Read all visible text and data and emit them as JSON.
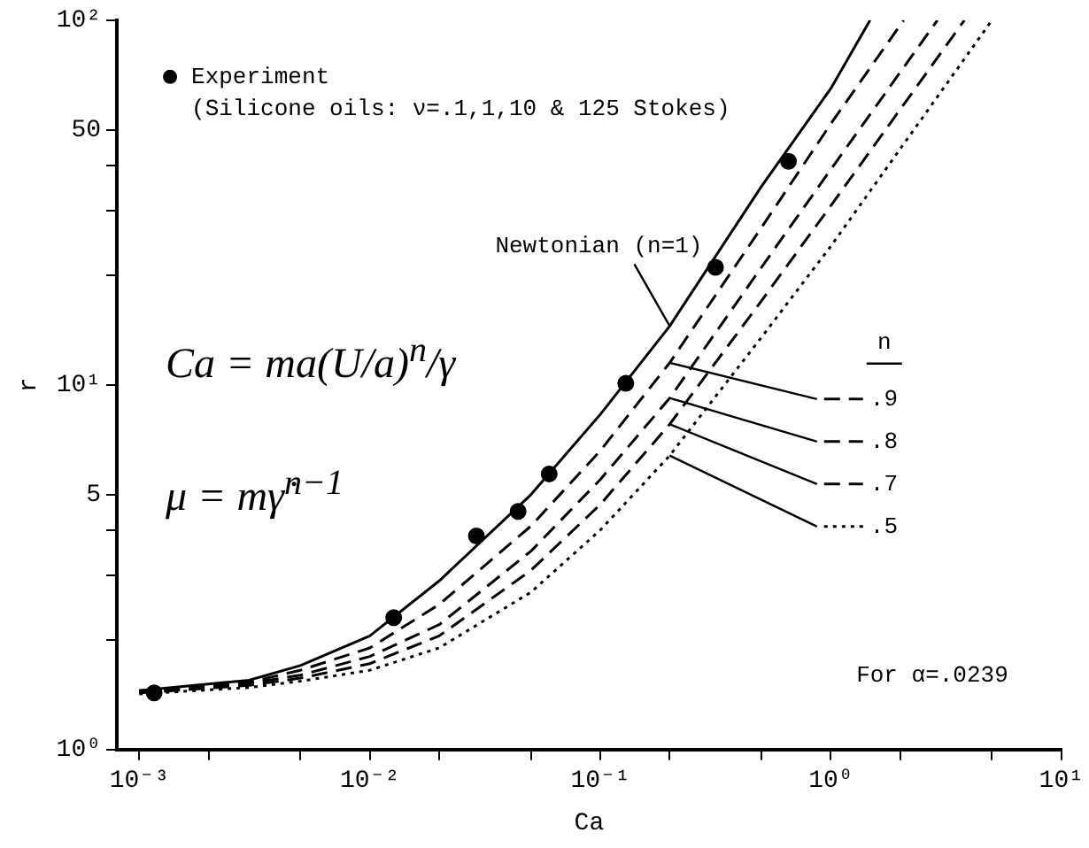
{
  "chart_data": {
    "type": "line",
    "xlabel": "Ca",
    "ylabel": "r",
    "log": "xy",
    "grid": false,
    "legend": "top left",
    "marker": "none",
    "xlim": [
      0.0008,
      10
    ],
    "ylim": [
      1,
      100
    ],
    "xticks": [
      {
        "value": 0.001,
        "label": "10⁻³"
      },
      {
        "value": 0.002,
        "label": null
      },
      {
        "value": 0.005,
        "label": null
      },
      {
        "value": 0.01,
        "label": "10⁻²"
      },
      {
        "value": 0.02,
        "label": null
      },
      {
        "value": 0.05,
        "label": null
      },
      {
        "value": 0.1,
        "label": "10⁻¹"
      },
      {
        "value": 0.2,
        "label": null
      },
      {
        "value": 0.5,
        "label": null
      },
      {
        "value": 1,
        "label": "10⁰"
      },
      {
        "value": 2,
        "label": null
      },
      {
        "value": 5,
        "label": null
      },
      {
        "value": 10,
        "label": "10¹"
      }
    ],
    "yticks": [
      {
        "value": 1,
        "label": "10⁰"
      },
      {
        "value": 2,
        "label": null
      },
      {
        "value": 3,
        "label": null
      },
      {
        "value": 4,
        "label": null
      },
      5,
      {
        "value": 10,
        "label": "10¹"
      },
      {
        "value": 20,
        "label": null
      },
      {
        "value": 30,
        "label": null
      },
      {
        "value": 40,
        "label": null
      },
      50,
      {
        "value": 100,
        "label": "10²"
      }
    ],
    "series": [
      {
        "name": "Experiment",
        "type": "scatter",
        "marker": "circle",
        "color": "#000000",
        "x": [
          0.00116,
          0.0127,
          0.029,
          0.044,
          0.06,
          0.129,
          0.316,
          0.655
        ],
        "values": [
          1.43,
          2.3,
          3.85,
          4.5,
          5.7,
          10.1,
          21,
          41
        ]
      },
      {
        "name": "Newtonian (n=1)",
        "line_style": "solid",
        "color": "#000000",
        "x": [
          0.001,
          0.003,
          0.005,
          0.01,
          0.02,
          0.05,
          0.1,
          0.2,
          0.5,
          1,
          1.48
        ],
        "values": [
          1.45,
          1.55,
          1.7,
          2.05,
          2.9,
          5.0,
          8.3,
          14.5,
          35,
          65,
          100
        ]
      },
      {
        "name": ".9",
        "line_style": "dashed",
        "color": "#000000",
        "x": [
          0.001,
          0.003,
          0.005,
          0.01,
          0.02,
          0.05,
          0.1,
          0.2,
          0.5,
          1,
          2.07
        ],
        "values": [
          1.45,
          1.53,
          1.65,
          1.9,
          2.5,
          4.1,
          6.6,
          11.5,
          27,
          52,
          100
        ]
      },
      {
        "name": ".8",
        "line_style": "dashed",
        "color": "#000000",
        "x": [
          0.001,
          0.003,
          0.005,
          0.01,
          0.02,
          0.05,
          0.1,
          0.2,
          0.5,
          1,
          2.9
        ],
        "values": [
          1.44,
          1.52,
          1.6,
          1.8,
          2.2,
          3.5,
          5.5,
          9.2,
          21,
          39,
          100
        ]
      },
      {
        "name": ".7",
        "line_style": "dashed",
        "color": "#000000",
        "x": [
          0.001,
          0.003,
          0.005,
          0.01,
          0.02,
          0.05,
          0.1,
          0.2,
          0.5,
          1,
          3.8
        ],
        "values": [
          1.43,
          1.5,
          1.57,
          1.72,
          2.05,
          3.1,
          4.7,
          7.8,
          17,
          31,
          100
        ]
      },
      {
        "name": ".5",
        "line_style": "dotted",
        "color": "#000000",
        "x": [
          0.001,
          0.003,
          0.005,
          0.01,
          0.02,
          0.05,
          0.1,
          0.2,
          0.5,
          1,
          5
        ],
        "values": [
          1.42,
          1.48,
          1.54,
          1.65,
          1.9,
          2.7,
          4.0,
          6.4,
          13.5,
          24,
          100
        ]
      }
    ],
    "annotations": [
      "(Silicone oils: ν=.1,1,10 & 125 Stokes)",
      "n",
      "Ca = ma(U/a)$^{n}$/γ",
      "μ = mγ̇$^{n−1}$",
      "For α=.0239"
    ]
  }
}
